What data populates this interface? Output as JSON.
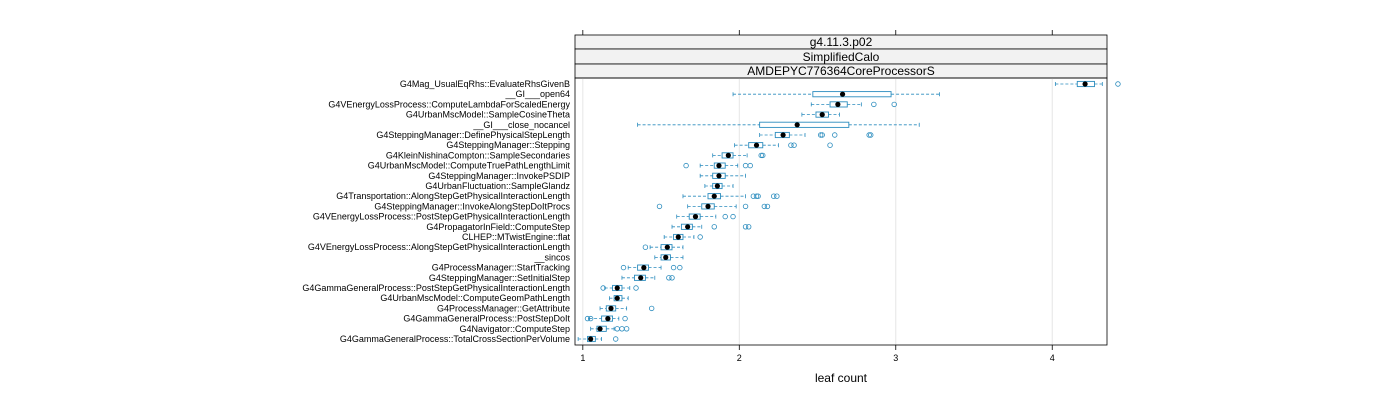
{
  "chart_data": {
    "type": "box",
    "strips": [
      "g4.11.3.p02",
      "SimplifiedCalo",
      "AMDEPYC776364CoreProcessorS"
    ],
    "xlabel": "leaf count",
    "xlim": [
      0.95,
      4.35
    ],
    "xticks": [
      1,
      2,
      3,
      4
    ],
    "grid": true,
    "colors": {
      "box": "#2b8cbe",
      "median": "#000000",
      "grid": "#e6e6e6",
      "strip_bg": "#f2f2f2"
    },
    "categories": [
      "G4Mag_UsualEqRhs::EvaluateRhsGivenB",
      "__GI___open64",
      "G4VEnergyLossProcess::ComputeLambdaForScaledEnergy",
      "G4UrbanMscModel::SampleCosineTheta",
      "__GI___close_nocancel",
      "G4SteppingManager::DefinePhysicalStepLength",
      "G4SteppingManager::Stepping",
      "G4KleinNishinaCompton::SampleSecondaries",
      "G4UrbanMscModel::ComputeTruePathLengthLimit",
      "G4SteppingManager::InvokePSDIP",
      "G4UrbanFluctuation::SampleGlandz",
      "G4Transportation::AlongStepGetPhysicalInteractionLength",
      "G4SteppingManager::InvokeAlongStepDoItProcs",
      "G4VEnergyLossProcess::PostStepGetPhysicalInteractionLength",
      "G4PropagatorInField::ComputeStep",
      "CLHEP::MTwistEngine::flat",
      "G4VEnergyLossProcess::AlongStepGetPhysicalInteractionLength",
      "__sincos",
      "G4ProcessManager::StartTracking",
      "G4SteppingManager::SetInitialStep",
      "G4GammaGeneralProcess::PostStepGetPhysicalInteractionLength",
      "G4UrbanMscModel::ComputeGeomPathLength",
      "G4ProcessManager::GetAttribute",
      "G4GammaGeneralProcess::PostStepDoIt",
      "G4Navigator::ComputeStep",
      "G4GammaGeneralProcess::TotalCrossSectionPerVolume"
    ],
    "boxes": [
      {
        "wlo": 4.02,
        "q1": 4.16,
        "med": 4.21,
        "q3": 4.27,
        "whi": 4.32,
        "out": [
          4.42
        ]
      },
      {
        "wlo": 1.96,
        "q1": 2.47,
        "med": 2.66,
        "q3": 2.97,
        "whi": 3.28,
        "out": []
      },
      {
        "wlo": 2.46,
        "q1": 2.58,
        "med": 2.63,
        "q3": 2.69,
        "whi": 2.78,
        "out": [
          2.86,
          2.99
        ]
      },
      {
        "wlo": 2.4,
        "q1": 2.49,
        "med": 2.53,
        "q3": 2.57,
        "whi": 2.64,
        "out": []
      },
      {
        "wlo": 1.35,
        "q1": 2.13,
        "med": 2.37,
        "q3": 2.7,
        "whi": 3.15,
        "out": []
      },
      {
        "wlo": 2.13,
        "q1": 2.23,
        "med": 2.28,
        "q3": 2.32,
        "whi": 2.42,
        "out": [
          2.52,
          2.53,
          2.61,
          2.83,
          2.84
        ]
      },
      {
        "wlo": 1.97,
        "q1": 2.06,
        "med": 2.11,
        "q3": 2.15,
        "whi": 2.25,
        "out": [
          2.33,
          2.35,
          2.58
        ]
      },
      {
        "wlo": 1.83,
        "q1": 1.89,
        "med": 1.93,
        "q3": 1.96,
        "whi": 2.05,
        "out": [
          2.14,
          2.15
        ]
      },
      {
        "wlo": 1.75,
        "q1": 1.84,
        "med": 1.87,
        "q3": 1.91,
        "whi": 1.99,
        "out": [
          1.66,
          2.04,
          2.07
        ]
      },
      {
        "wlo": 1.75,
        "q1": 1.83,
        "med": 1.87,
        "q3": 1.91,
        "whi": 2.04,
        "out": []
      },
      {
        "wlo": 1.78,
        "q1": 1.83,
        "med": 1.86,
        "q3": 1.89,
        "whi": 1.96,
        "out": []
      },
      {
        "wlo": 1.64,
        "q1": 1.8,
        "med": 1.84,
        "q3": 1.88,
        "whi": 2.04,
        "out": [
          2.09,
          2.11,
          2.12,
          2.22,
          2.24
        ]
      },
      {
        "wlo": 1.67,
        "q1": 1.76,
        "med": 1.8,
        "q3": 1.84,
        "whi": 1.98,
        "out": [
          1.49,
          2.04,
          2.16,
          2.18
        ]
      },
      {
        "wlo": 1.6,
        "q1": 1.68,
        "med": 1.72,
        "q3": 1.75,
        "whi": 1.85,
        "out": [
          1.91,
          1.96
        ]
      },
      {
        "wlo": 1.57,
        "q1": 1.63,
        "med": 1.67,
        "q3": 1.7,
        "whi": 1.76,
        "out": [
          1.84,
          2.04,
          2.06
        ]
      },
      {
        "wlo": 1.52,
        "q1": 1.58,
        "med": 1.61,
        "q3": 1.64,
        "whi": 1.71,
        "out": [
          1.75
        ]
      },
      {
        "wlo": 1.43,
        "q1": 1.5,
        "med": 1.54,
        "q3": 1.57,
        "whi": 1.64,
        "out": [
          1.4
        ]
      },
      {
        "wlo": 1.46,
        "q1": 1.5,
        "med": 1.53,
        "q3": 1.56,
        "whi": 1.64,
        "out": []
      },
      {
        "wlo": 1.29,
        "q1": 1.35,
        "med": 1.39,
        "q3": 1.42,
        "whi": 1.5,
        "out": [
          1.26,
          1.58,
          1.62
        ]
      },
      {
        "wlo": 1.25,
        "q1": 1.33,
        "med": 1.37,
        "q3": 1.4,
        "whi": 1.46,
        "out": [
          1.55,
          1.57
        ]
      },
      {
        "wlo": 1.14,
        "q1": 1.19,
        "med": 1.22,
        "q3": 1.25,
        "whi": 1.3,
        "out": [
          1.13,
          1.34
        ]
      },
      {
        "wlo": 1.17,
        "q1": 1.2,
        "med": 1.22,
        "q3": 1.25,
        "whi": 1.29,
        "out": []
      },
      {
        "wlo": 1.11,
        "q1": 1.15,
        "med": 1.18,
        "q3": 1.21,
        "whi": 1.28,
        "out": [
          1.44
        ]
      },
      {
        "wlo": 1.04,
        "q1": 1.12,
        "med": 1.16,
        "q3": 1.19,
        "whi": 1.23,
        "out": [
          1.03,
          1.05,
          1.27
        ]
      },
      {
        "wlo": 1.05,
        "q1": 1.09,
        "med": 1.11,
        "q3": 1.15,
        "whi": 1.2,
        "out": [
          1.22,
          1.25,
          1.28
        ]
      },
      {
        "wlo": 0.97,
        "q1": 1.03,
        "med": 1.05,
        "q3": 1.08,
        "whi": 1.12,
        "out": [
          1.21
        ]
      }
    ]
  }
}
